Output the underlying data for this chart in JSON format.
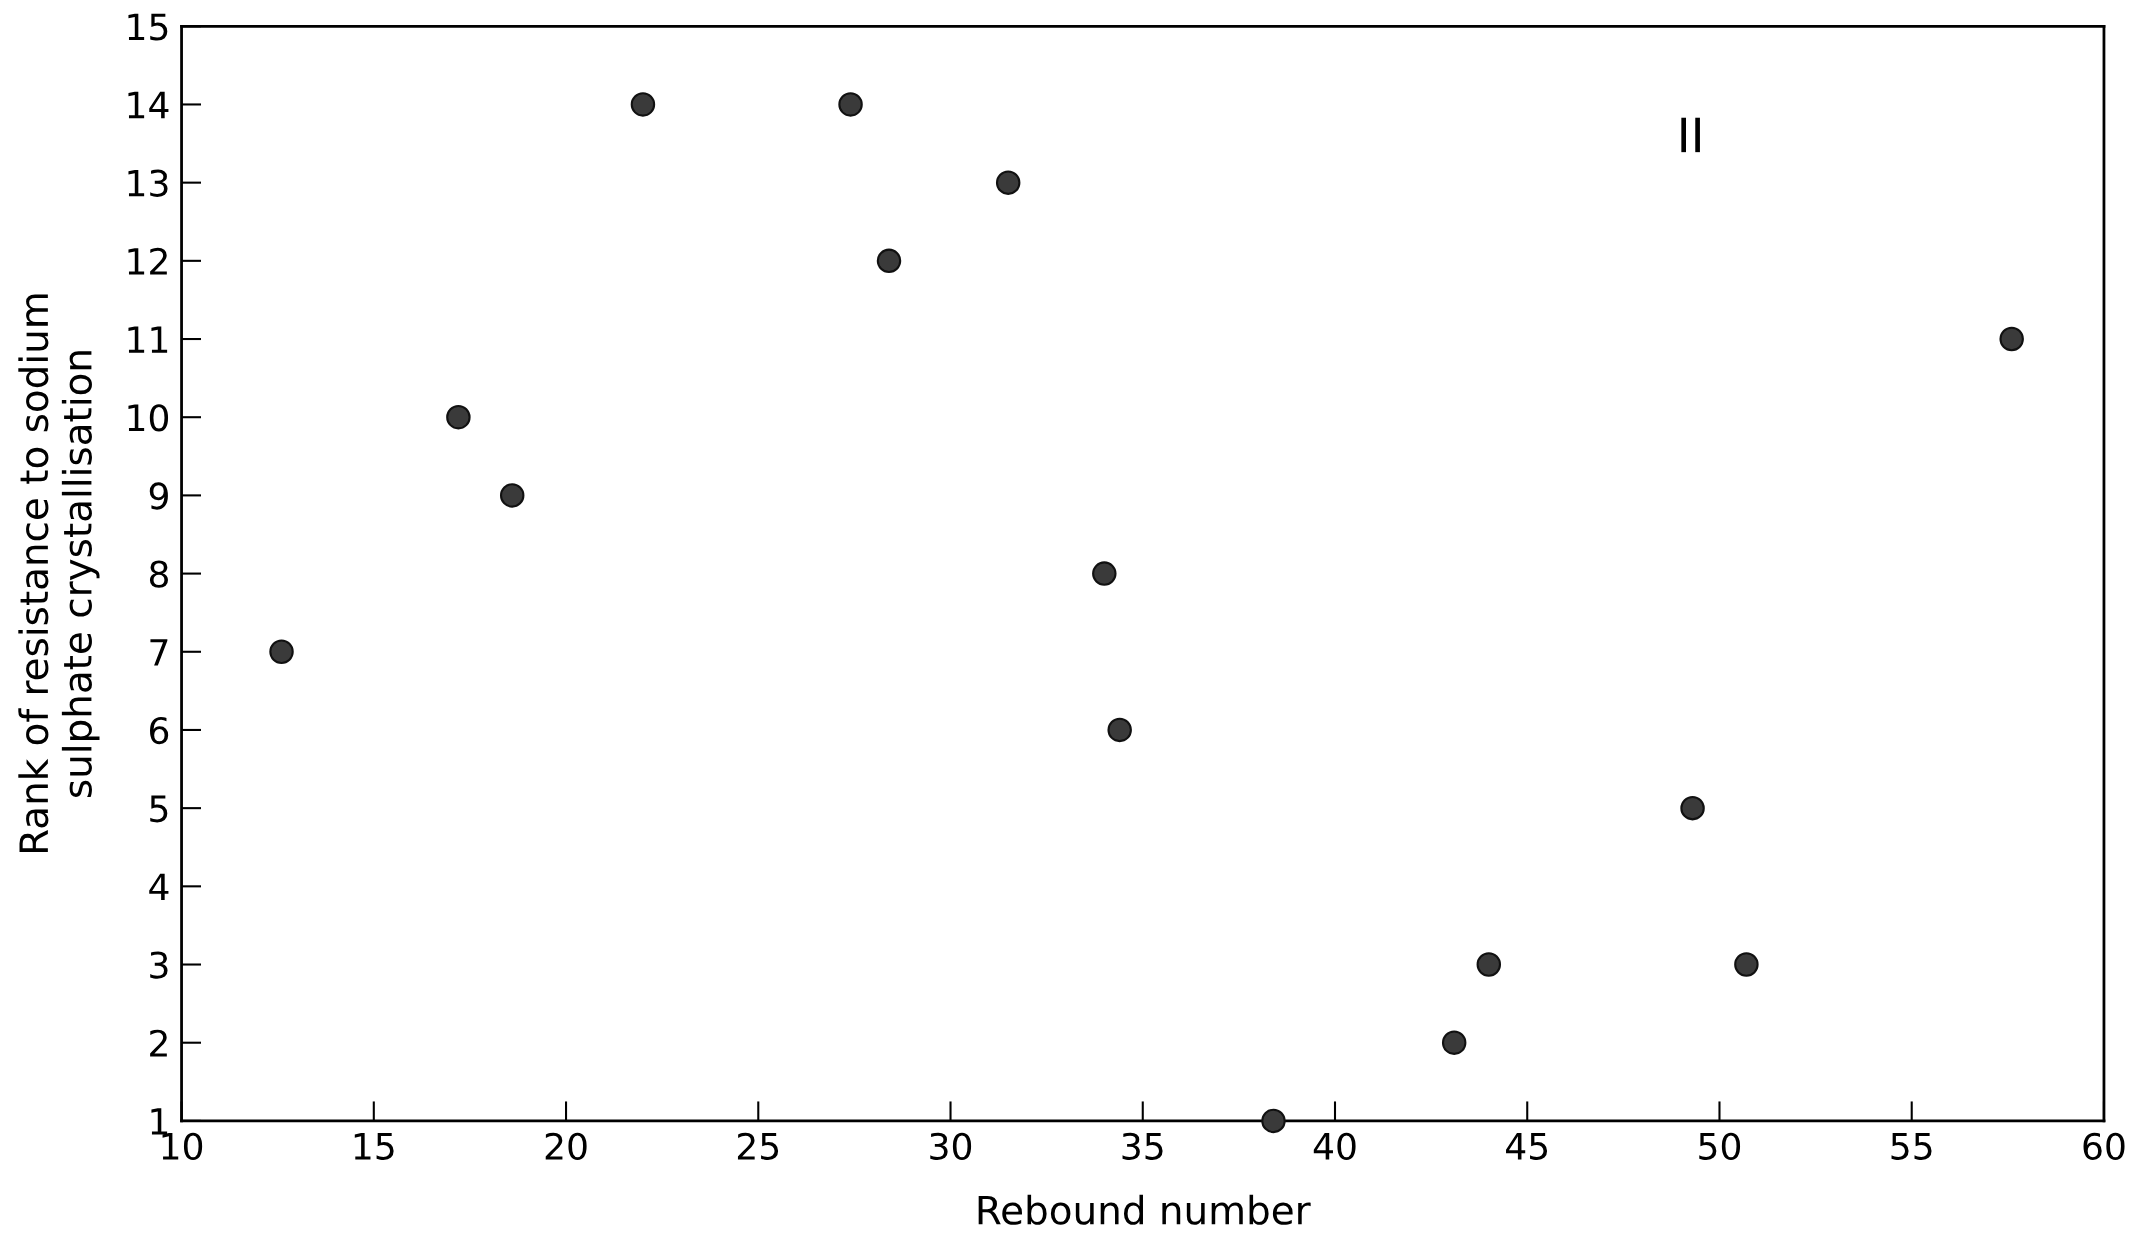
{
  "chart_data": {
    "type": "scatter",
    "xlabel": "Rebound number",
    "ylabel": "Rank of resistance to sodium\nsulphate crystallisation",
    "x": [
      12.6,
      17.2,
      18.6,
      22.0,
      27.4,
      28.4,
      31.5,
      34.0,
      34.4,
      38.4,
      43.1,
      44.0,
      49.3,
      50.7,
      57.6
    ],
    "values": [
      7,
      10,
      9,
      14,
      14,
      12,
      13,
      8,
      6,
      1,
      2,
      3,
      5,
      3,
      11
    ],
    "color": "#3a3a3a",
    "marker": "circle",
    "xlim": [
      10,
      60
    ],
    "xticks": [
      10,
      15,
      20,
      25,
      30,
      35,
      40,
      45,
      50,
      55,
      60
    ],
    "ylim": [
      1,
      15
    ],
    "yticks": [
      1,
      2,
      3,
      4,
      5,
      6,
      7,
      8,
      9,
      10,
      11,
      12,
      13,
      14,
      15
    ],
    "grid": false,
    "annotations": [
      "II"
    ]
  }
}
